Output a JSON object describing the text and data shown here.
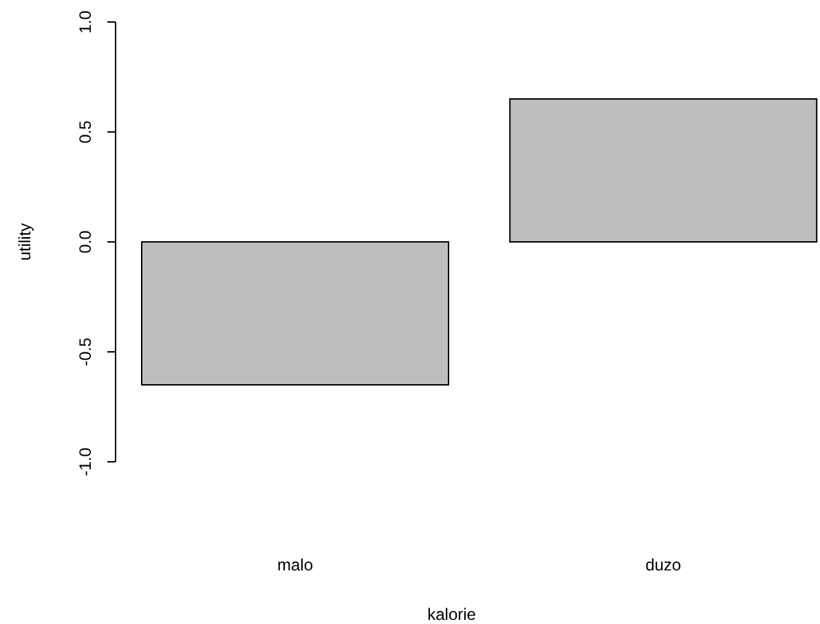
{
  "chart_data": {
    "type": "bar",
    "xlabel": "kalorie",
    "ylabel": "utility",
    "categories": [
      "malo",
      "duzo"
    ],
    "values": [
      -0.65,
      0.65
    ],
    "color": "#bebebe",
    "ylim": [
      -1.0,
      1.0
    ],
    "yticks": [
      {
        "value": -1,
        "label": "-1.0"
      },
      {
        "value": -0.5,
        "label": "-0.5"
      },
      {
        "value": 0,
        "label": "0.0"
      },
      {
        "value": 0.5,
        "label": "0.5"
      },
      {
        "value": 1,
        "label": "1.0"
      }
    ]
  }
}
